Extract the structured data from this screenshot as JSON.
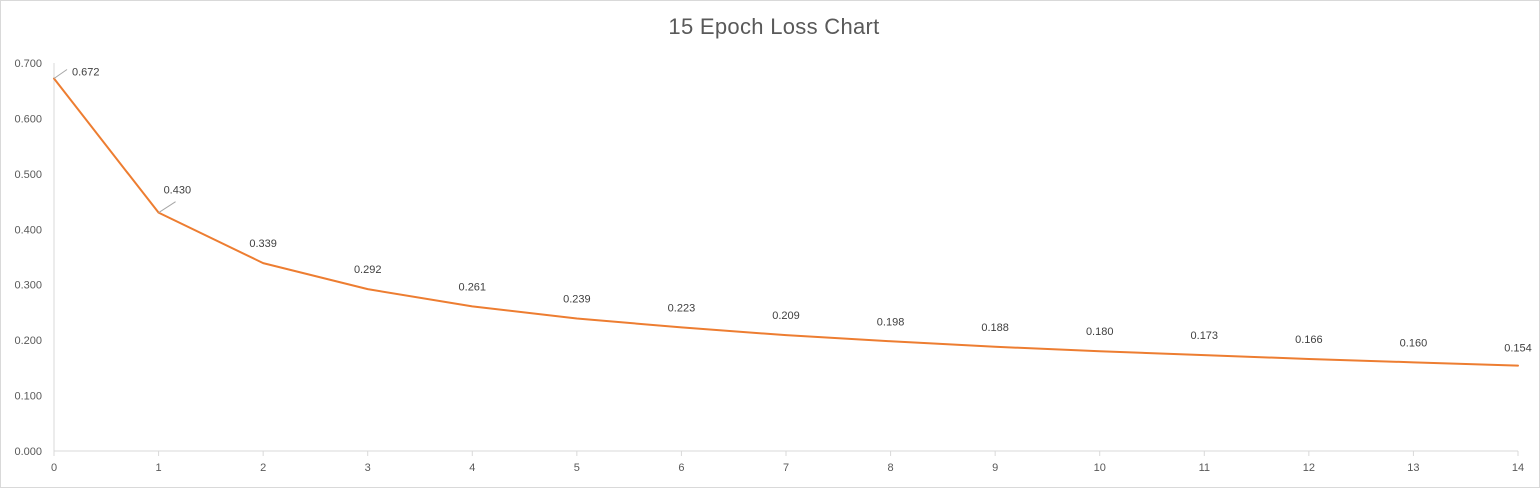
{
  "chart_data": {
    "type": "line",
    "title": "15 Epoch Loss Chart",
    "xlabel": "",
    "ylabel": "",
    "x": [
      0,
      1,
      2,
      3,
      4,
      5,
      6,
      7,
      8,
      9,
      10,
      11,
      12,
      13,
      14
    ],
    "series": [
      {
        "values": [
          0.672,
          0.43,
          0.339,
          0.292,
          0.261,
          0.239,
          0.223,
          0.209,
          0.198,
          0.188,
          0.18,
          0.173,
          0.166,
          0.16,
          0.154
        ],
        "labels": [
          "0.672",
          "0.430",
          "0.339",
          "0.292",
          "0.261",
          "0.239",
          "0.223",
          "0.209",
          "0.198",
          "0.188",
          "0.180",
          "0.173",
          "0.166",
          "0.160",
          "0.154"
        ],
        "color": "#ed7d31"
      }
    ],
    "x_tick_labels": [
      "0",
      "1",
      "2",
      "3",
      "4",
      "5",
      "6",
      "7",
      "8",
      "9",
      "10",
      "11",
      "12",
      "13",
      "14"
    ],
    "y_ticks": [
      0.0,
      0.1,
      0.2,
      0.3,
      0.4,
      0.5,
      0.6,
      0.7
    ],
    "y_tick_labels": [
      "0.000",
      "0.100",
      "0.200",
      "0.300",
      "0.400",
      "0.500",
      "0.600",
      "0.700"
    ],
    "xlim": [
      0,
      14
    ],
    "ylim": [
      0,
      0.7
    ],
    "grid": false,
    "legend": "none",
    "axis_color": "#d9d9d9",
    "leader_line_color": "#a6a6a6"
  }
}
